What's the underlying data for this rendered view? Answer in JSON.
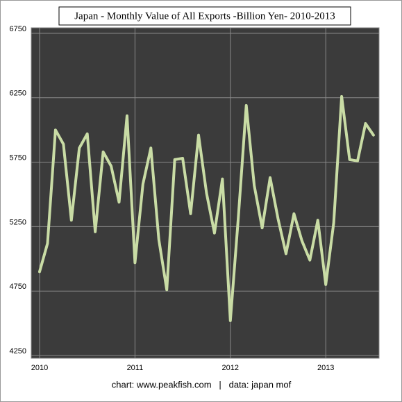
{
  "chart_data": {
    "type": "line",
    "title": "Japan - Monthly Value of All Exports -Billion Yen- 2010-2013",
    "footer": "chart: www.peakfish.com   |   data: japan mof",
    "categories": [
      "2010",
      null,
      null,
      null,
      null,
      null,
      null,
      null,
      null,
      null,
      null,
      null,
      "2011",
      null,
      null,
      null,
      null,
      null,
      null,
      null,
      null,
      null,
      null,
      null,
      "2012",
      null,
      null,
      null,
      null,
      null,
      null,
      null,
      null,
      null,
      null,
      null,
      "2013",
      null,
      null,
      null,
      null,
      null,
      null
    ],
    "series": [
      {
        "color": "#c9dca5",
        "values": [
          4900,
          5120,
          6000,
          5890,
          5300,
          5860,
          5970,
          5210,
          5830,
          5720,
          5440,
          6110,
          4970,
          5580,
          5860,
          5150,
          4760,
          5770,
          5780,
          5350,
          5960,
          5510,
          5200,
          5620,
          4520,
          5320,
          6190,
          5570,
          5240,
          5630,
          5310,
          5040,
          5350,
          5140,
          4990,
          5300,
          4800,
          5280,
          6260,
          5770,
          5760,
          6050,
          5960
        ]
      }
    ],
    "ylim": [
      4250,
      6750
    ],
    "yticks": [
      4250,
      4750,
      5250,
      5750,
      6250,
      6750
    ],
    "grid": true
  }
}
